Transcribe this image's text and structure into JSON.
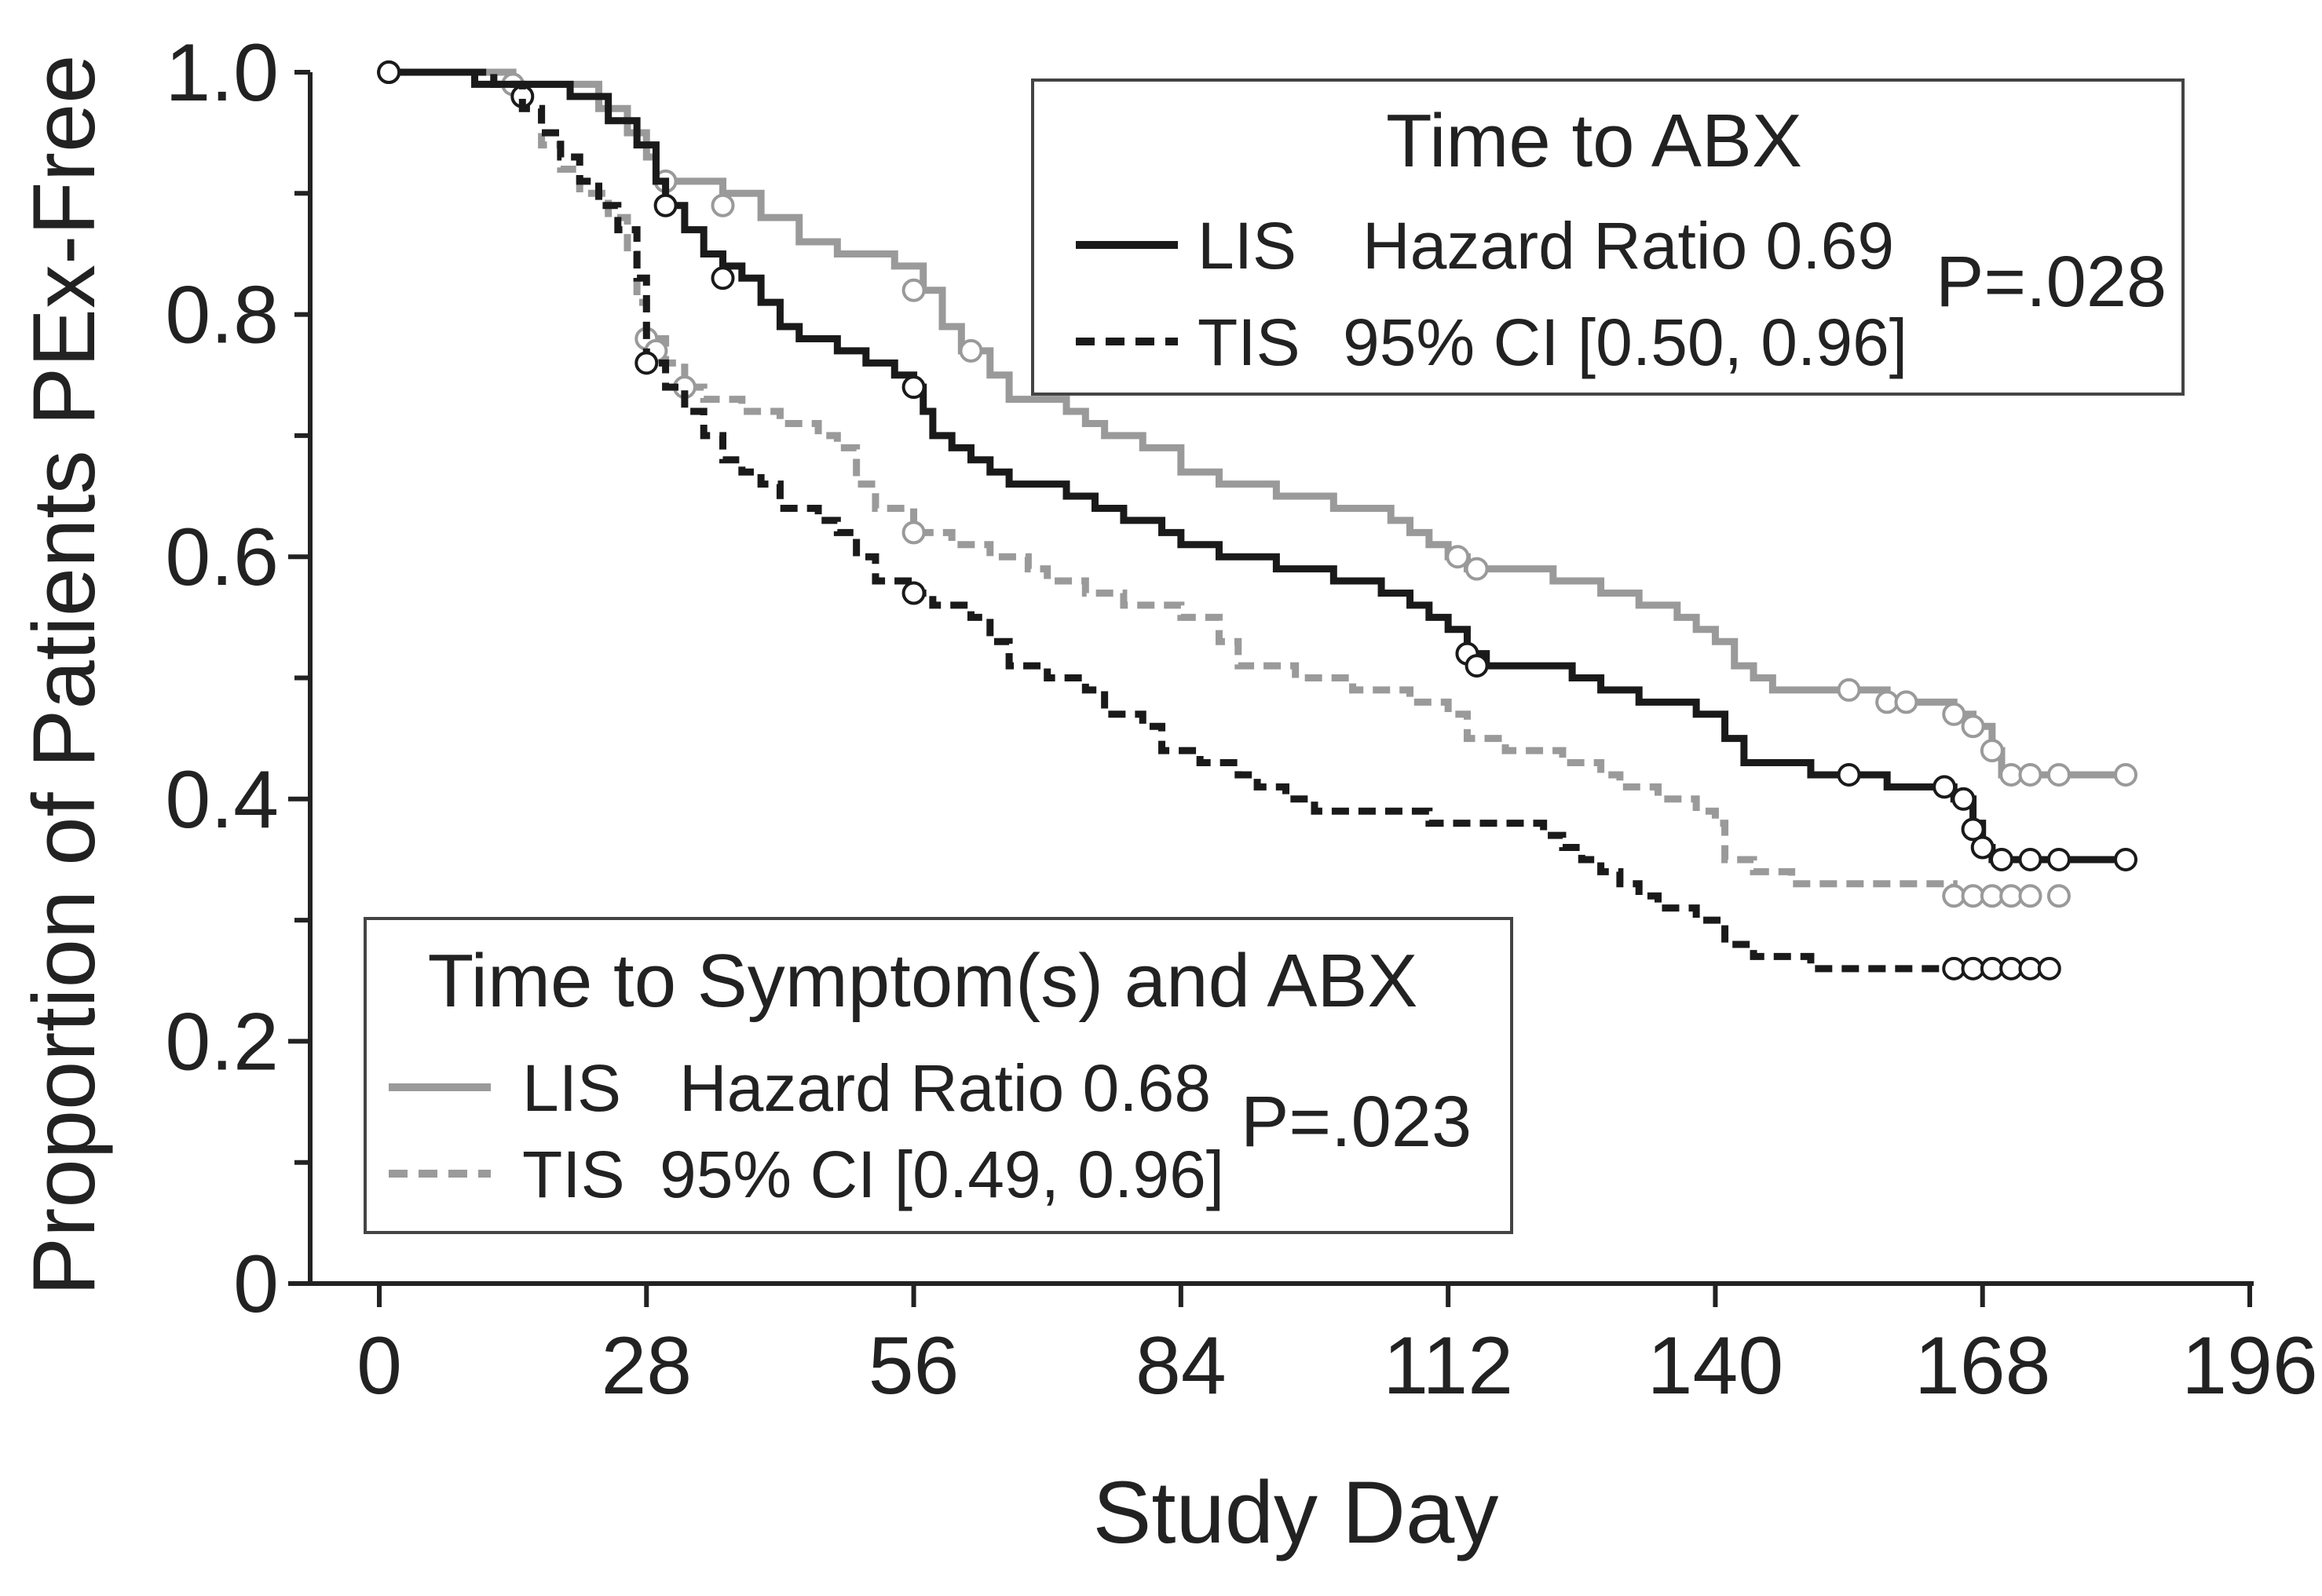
{
  "chart_data": {
    "type": "line",
    "subtype": "kaplan-meier",
    "xlabel": "Study Day",
    "ylabel": "Proportion of Patients PEx-Free",
    "xlim": [
      0,
      196
    ],
    "ylim": [
      0,
      1.0
    ],
    "xticks": [
      0,
      28,
      56,
      84,
      112,
      140,
      168,
      196
    ],
    "xtick_labels": [
      "0",
      "28",
      "56",
      "84",
      "112",
      "140",
      "168",
      "196"
    ],
    "yticks": [
      0,
      0.2,
      0.4,
      0.6,
      0.8,
      1.0
    ],
    "ytick_labels": [
      "0",
      "0.2",
      "0.4",
      "0.6",
      "0.8",
      "1.0"
    ],
    "legends": {
      "abx": {
        "title": "Time to ABX",
        "rows": [
          {
            "series": "LIS",
            "text": "Hazard Ratio 0.69"
          },
          {
            "series": "TIS",
            "text": "95% CI [0.50, 0.96]"
          }
        ],
        "p_value": "P=.028"
      },
      "symptoms": {
        "title": "Time to Symptom(s) and ABX",
        "rows": [
          {
            "series": "LIS",
            "text": "Hazard Ratio 0.68"
          },
          {
            "series": "TIS",
            "text": "95% CI [0.49, 0.96]"
          }
        ],
        "p_value": "P=.023"
      }
    },
    "series": [
      {
        "name": "LIS - Time to ABX",
        "color": "#1a1a1a",
        "dash": false,
        "points": [
          [
            1,
            1.0
          ],
          [
            10,
            0.99
          ],
          [
            15,
            0.99
          ],
          [
            20,
            0.98
          ],
          [
            24,
            0.96
          ],
          [
            27,
            0.94
          ],
          [
            29,
            0.91
          ],
          [
            30,
            0.89
          ],
          [
            32,
            0.87
          ],
          [
            34,
            0.85
          ],
          [
            36,
            0.84
          ],
          [
            38,
            0.83
          ],
          [
            40,
            0.81
          ],
          [
            42,
            0.79
          ],
          [
            44,
            0.78
          ],
          [
            48,
            0.77
          ],
          [
            51,
            0.76
          ],
          [
            54,
            0.75
          ],
          [
            56,
            0.74
          ],
          [
            57,
            0.72
          ],
          [
            58,
            0.7
          ],
          [
            60,
            0.69
          ],
          [
            62,
            0.68
          ],
          [
            64,
            0.67
          ],
          [
            66,
            0.66
          ],
          [
            72,
            0.65
          ],
          [
            75,
            0.64
          ],
          [
            78,
            0.63
          ],
          [
            82,
            0.62
          ],
          [
            84,
            0.61
          ],
          [
            88,
            0.6
          ],
          [
            94,
            0.59
          ],
          [
            100,
            0.58
          ],
          [
            105,
            0.57
          ],
          [
            108,
            0.56
          ],
          [
            110,
            0.55
          ],
          [
            112,
            0.54
          ],
          [
            114,
            0.52
          ],
          [
            116,
            0.51
          ],
          [
            125,
            0.5
          ],
          [
            128,
            0.49
          ],
          [
            132,
            0.48
          ],
          [
            138,
            0.47
          ],
          [
            141,
            0.45
          ],
          [
            143,
            0.43
          ],
          [
            150,
            0.42
          ],
          [
            158,
            0.41
          ],
          [
            165,
            0.4
          ],
          [
            167,
            0.38
          ],
          [
            168,
            0.36
          ],
          [
            169,
            0.35
          ],
          [
            183,
            0.35
          ]
        ],
        "censored": [
          [
            1,
            1.0
          ],
          [
            15,
            0.98
          ],
          [
            30,
            0.89
          ],
          [
            36,
            0.83
          ],
          [
            56,
            0.74
          ],
          [
            114,
            0.52
          ],
          [
            115,
            0.51
          ],
          [
            154,
            0.42
          ],
          [
            164,
            0.41
          ],
          [
            166,
            0.4
          ],
          [
            167,
            0.375
          ],
          [
            168,
            0.36
          ],
          [
            170,
            0.35
          ],
          [
            173,
            0.35
          ],
          [
            176,
            0.35
          ],
          [
            183,
            0.35
          ]
        ]
      },
      {
        "name": "TIS - Time to ABX",
        "color": "#1a1a1a",
        "dash": true,
        "points": [
          [
            1,
            1.0
          ],
          [
            12,
            0.99
          ],
          [
            15,
            0.97
          ],
          [
            17,
            0.95
          ],
          [
            19,
            0.93
          ],
          [
            21,
            0.91
          ],
          [
            23,
            0.89
          ],
          [
            25,
            0.87
          ],
          [
            27,
            0.83
          ],
          [
            28,
            0.76
          ],
          [
            30,
            0.74
          ],
          [
            32,
            0.72
          ],
          [
            34,
            0.7
          ],
          [
            36,
            0.68
          ],
          [
            38,
            0.67
          ],
          [
            40,
            0.66
          ],
          [
            42,
            0.64
          ],
          [
            46,
            0.63
          ],
          [
            48,
            0.62
          ],
          [
            50,
            0.6
          ],
          [
            52,
            0.58
          ],
          [
            56,
            0.57
          ],
          [
            58,
            0.56
          ],
          [
            62,
            0.55
          ],
          [
            64,
            0.53
          ],
          [
            66,
            0.51
          ],
          [
            70,
            0.5
          ],
          [
            74,
            0.49
          ],
          [
            76,
            0.47
          ],
          [
            80,
            0.46
          ],
          [
            82,
            0.44
          ],
          [
            86,
            0.43
          ],
          [
            90,
            0.42
          ],
          [
            92,
            0.41
          ],
          [
            95,
            0.4
          ],
          [
            98,
            0.39
          ],
          [
            110,
            0.38
          ],
          [
            122,
            0.37
          ],
          [
            124,
            0.36
          ],
          [
            126,
            0.35
          ],
          [
            128,
            0.34
          ],
          [
            130,
            0.33
          ],
          [
            132,
            0.32
          ],
          [
            134,
            0.31
          ],
          [
            138,
            0.3
          ],
          [
            141,
            0.28
          ],
          [
            144,
            0.27
          ],
          [
            150,
            0.26
          ],
          [
            165,
            0.26
          ],
          [
            176,
            0.26
          ]
        ],
        "censored": [
          [
            1,
            1.0
          ],
          [
            28,
            0.76
          ],
          [
            56,
            0.57
          ],
          [
            165,
            0.26
          ],
          [
            167,
            0.26
          ],
          [
            169,
            0.26
          ],
          [
            171,
            0.26
          ],
          [
            173,
            0.26
          ],
          [
            175,
            0.26
          ]
        ]
      },
      {
        "name": "LIS - Time to Symptom(s) and ABX",
        "color": "#9a9a9a",
        "dash": false,
        "points": [
          [
            1,
            1.0
          ],
          [
            10,
            1.0
          ],
          [
            14,
            0.99
          ],
          [
            20,
            0.99
          ],
          [
            23,
            0.97
          ],
          [
            26,
            0.95
          ],
          [
            28,
            0.93
          ],
          [
            29,
            0.91
          ],
          [
            36,
            0.9
          ],
          [
            40,
            0.88
          ],
          [
            44,
            0.86
          ],
          [
            48,
            0.85
          ],
          [
            54,
            0.84
          ],
          [
            57,
            0.82
          ],
          [
            59,
            0.79
          ],
          [
            61,
            0.77
          ],
          [
            64,
            0.75
          ],
          [
            66,
            0.73
          ],
          [
            72,
            0.72
          ],
          [
            74,
            0.71
          ],
          [
            76,
            0.7
          ],
          [
            80,
            0.69
          ],
          [
            84,
            0.67
          ],
          [
            88,
            0.66
          ],
          [
            94,
            0.65
          ],
          [
            100,
            0.64
          ],
          [
            106,
            0.63
          ],
          [
            108,
            0.62
          ],
          [
            110,
            0.61
          ],
          [
            112,
            0.6
          ],
          [
            114,
            0.59
          ],
          [
            123,
            0.58
          ],
          [
            128,
            0.57
          ],
          [
            132,
            0.56
          ],
          [
            136,
            0.55
          ],
          [
            138,
            0.54
          ],
          [
            140,
            0.53
          ],
          [
            142,
            0.51
          ],
          [
            144,
            0.5
          ],
          [
            146,
            0.49
          ],
          [
            158,
            0.48
          ],
          [
            165,
            0.47
          ],
          [
            167,
            0.46
          ],
          [
            169,
            0.44
          ],
          [
            170,
            0.42
          ],
          [
            183,
            0.42
          ]
        ],
        "censored": [
          [
            1,
            1.0
          ],
          [
            14,
            0.99
          ],
          [
            30,
            0.91
          ],
          [
            36,
            0.89
          ],
          [
            56,
            0.82
          ],
          [
            62,
            0.77
          ],
          [
            113,
            0.6
          ],
          [
            115,
            0.59
          ],
          [
            154,
            0.49
          ],
          [
            158,
            0.48
          ],
          [
            160,
            0.48
          ],
          [
            165,
            0.47
          ],
          [
            167,
            0.46
          ],
          [
            169,
            0.44
          ],
          [
            171,
            0.42
          ],
          [
            173,
            0.42
          ],
          [
            176,
            0.42
          ],
          [
            183,
            0.42
          ]
        ]
      },
      {
        "name": "TIS - Time to Symptom(s) and ABX",
        "color": "#9a9a9a",
        "dash": true,
        "points": [
          [
            1,
            1.0
          ],
          [
            12,
            0.99
          ],
          [
            15,
            0.97
          ],
          [
            17,
            0.94
          ],
          [
            19,
            0.92
          ],
          [
            21,
            0.9
          ],
          [
            24,
            0.88
          ],
          [
            26,
            0.85
          ],
          [
            27,
            0.81
          ],
          [
            28,
            0.78
          ],
          [
            30,
            0.76
          ],
          [
            32,
            0.74
          ],
          [
            34,
            0.73
          ],
          [
            38,
            0.72
          ],
          [
            42,
            0.71
          ],
          [
            46,
            0.7
          ],
          [
            48,
            0.69
          ],
          [
            50,
            0.66
          ],
          [
            52,
            0.64
          ],
          [
            56,
            0.62
          ],
          [
            60,
            0.61
          ],
          [
            64,
            0.6
          ],
          [
            68,
            0.59
          ],
          [
            70,
            0.58
          ],
          [
            74,
            0.57
          ],
          [
            78,
            0.56
          ],
          [
            84,
            0.55
          ],
          [
            88,
            0.53
          ],
          [
            90,
            0.51
          ],
          [
            96,
            0.5
          ],
          [
            102,
            0.49
          ],
          [
            108,
            0.48
          ],
          [
            112,
            0.47
          ],
          [
            114,
            0.45
          ],
          [
            118,
            0.44
          ],
          [
            124,
            0.43
          ],
          [
            128,
            0.42
          ],
          [
            130,
            0.41
          ],
          [
            134,
            0.4
          ],
          [
            138,
            0.39
          ],
          [
            140,
            0.38
          ],
          [
            141,
            0.35
          ],
          [
            144,
            0.34
          ],
          [
            148,
            0.33
          ],
          [
            160,
            0.33
          ],
          [
            165,
            0.32
          ],
          [
            176,
            0.32
          ]
        ],
        "censored": [
          [
            1,
            1.0
          ],
          [
            28,
            0.78
          ],
          [
            29,
            0.77
          ],
          [
            32,
            0.74
          ],
          [
            56,
            0.62
          ],
          [
            165,
            0.32
          ],
          [
            167,
            0.32
          ],
          [
            169,
            0.32
          ],
          [
            171,
            0.32
          ],
          [
            173,
            0.32
          ],
          [
            176,
            0.32
          ]
        ]
      }
    ]
  }
}
